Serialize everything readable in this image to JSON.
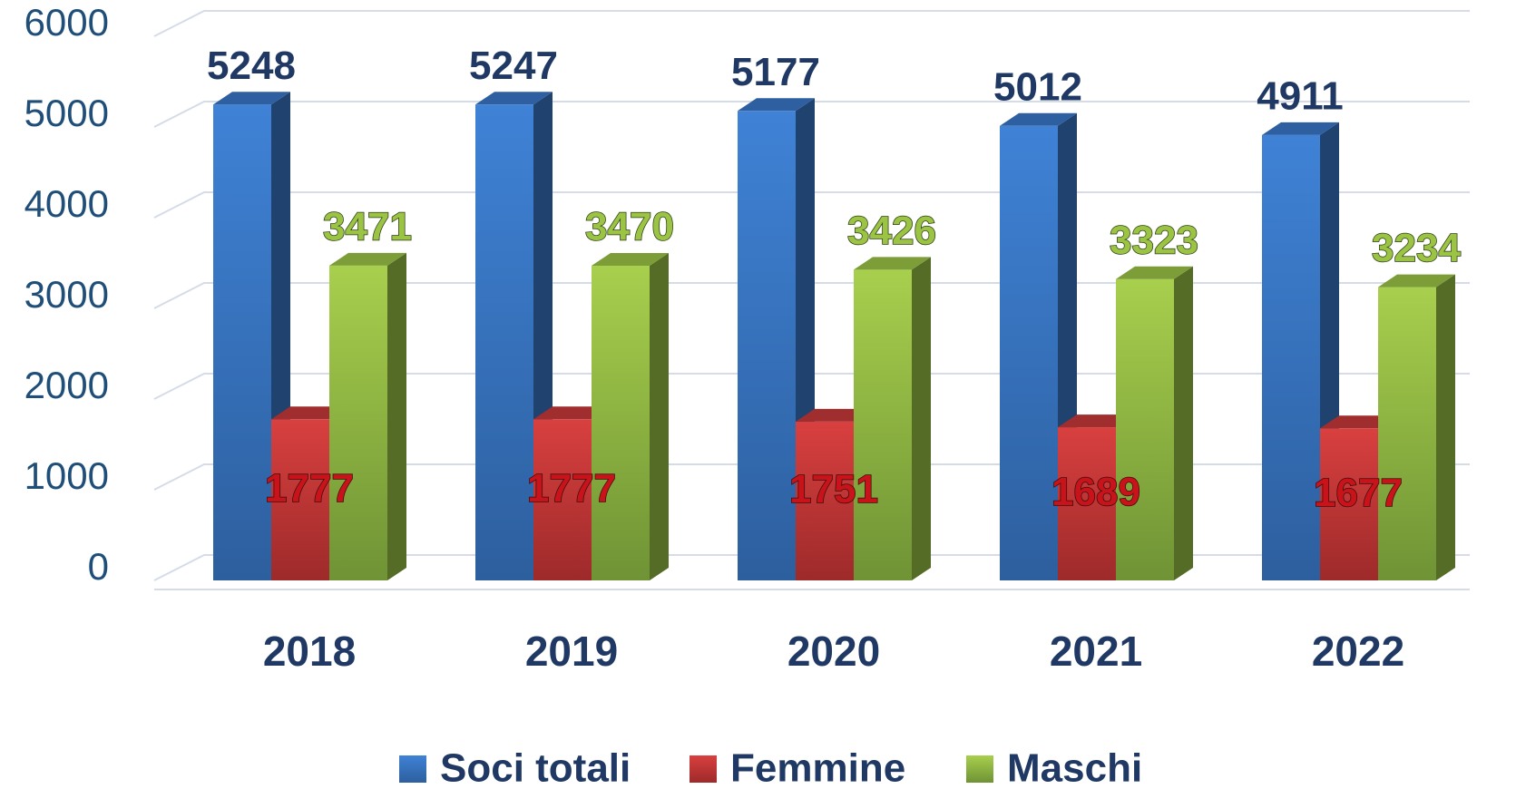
{
  "chart_data": {
    "type": "bar3d",
    "categories": [
      "2018",
      "2019",
      "2020",
      "2021",
      "2022"
    ],
    "series": [
      {
        "name": "Soci totali",
        "color": "#3a78c9",
        "values": [
          5248,
          5247,
          5177,
          5012,
          4911
        ]
      },
      {
        "name": "Femmine",
        "color": "#c8393a",
        "values": [
          1777,
          1777,
          1751,
          1689,
          1677
        ]
      },
      {
        "name": "Maschi",
        "color": "#9bc445",
        "values": [
          3471,
          3470,
          3426,
          3323,
          3234
        ]
      }
    ],
    "ylim": [
      0,
      6000
    ],
    "yticks": [
      0,
      1000,
      2000,
      3000,
      4000,
      5000,
      6000
    ],
    "grid": true,
    "legend": "bottom"
  }
}
